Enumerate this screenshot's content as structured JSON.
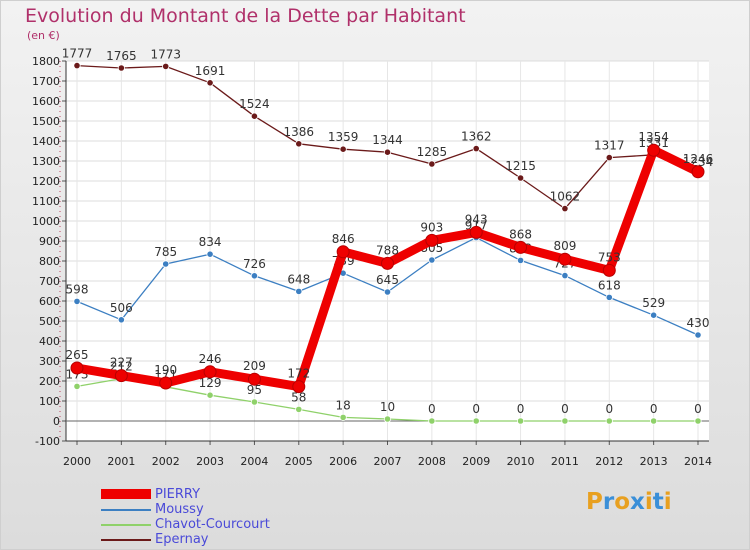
{
  "chart_data": {
    "type": "line",
    "title": "Evolution du Montant de la Dette par Habitant",
    "unit_label": "(en €)",
    "x": [
      2000,
      2001,
      2002,
      2003,
      2004,
      2005,
      2006,
      2007,
      2008,
      2009,
      2010,
      2011,
      2012,
      2013,
      2014
    ],
    "ylim": [
      -100,
      1800
    ],
    "y_ticks": [
      -100,
      0,
      100,
      200,
      300,
      400,
      500,
      600,
      700,
      800,
      900,
      1000,
      1100,
      1200,
      1300,
      1400,
      1500,
      1600,
      1700,
      1800
    ],
    "grid": true,
    "legend_position": "bottom-left",
    "series": [
      {
        "name": "Epernay",
        "color": "#6b1a1a",
        "values": [
          1777,
          1765,
          1773,
          1691,
          1524,
          1386,
          1359,
          1344,
          1285,
          1362,
          1215,
          1062,
          1317,
          1331,
          1234
        ]
      },
      {
        "name": "Moussy",
        "color": "#3c7fc2",
        "values": [
          598,
          506,
          785,
          834,
          726,
          648,
          739,
          645,
          805,
          917,
          803,
          727,
          618,
          529,
          430
        ]
      },
      {
        "name": "Chavot-Courcourt",
        "color": "#8fd16a",
        "values": [
          173,
          212,
          171,
          129,
          95,
          58,
          18,
          10,
          0,
          0,
          0,
          0,
          0,
          0,
          0
        ]
      },
      {
        "name": "PIERRY",
        "color": "#ee0000",
        "values": [
          265,
          227,
          190,
          246,
          209,
          172,
          846,
          788,
          903,
          943,
          868,
          809,
          753,
          1354,
          1246
        ]
      }
    ]
  },
  "legend": [
    {
      "name": "PIERRY",
      "color": "#ee0000"
    },
    {
      "name": "Moussy",
      "color": "#3c7fc2"
    },
    {
      "name": "Chavot-Courcourt",
      "color": "#8fd16a"
    },
    {
      "name": "Epernay",
      "color": "#6b1a1a"
    }
  ],
  "logo": {
    "text": "Proxiti",
    "colors": [
      "#e8a020",
      "#3a8fd8",
      "#e8a020",
      "#3a8fd8",
      "#e8a020",
      "#3a8fd8",
      "#e8a020"
    ]
  }
}
